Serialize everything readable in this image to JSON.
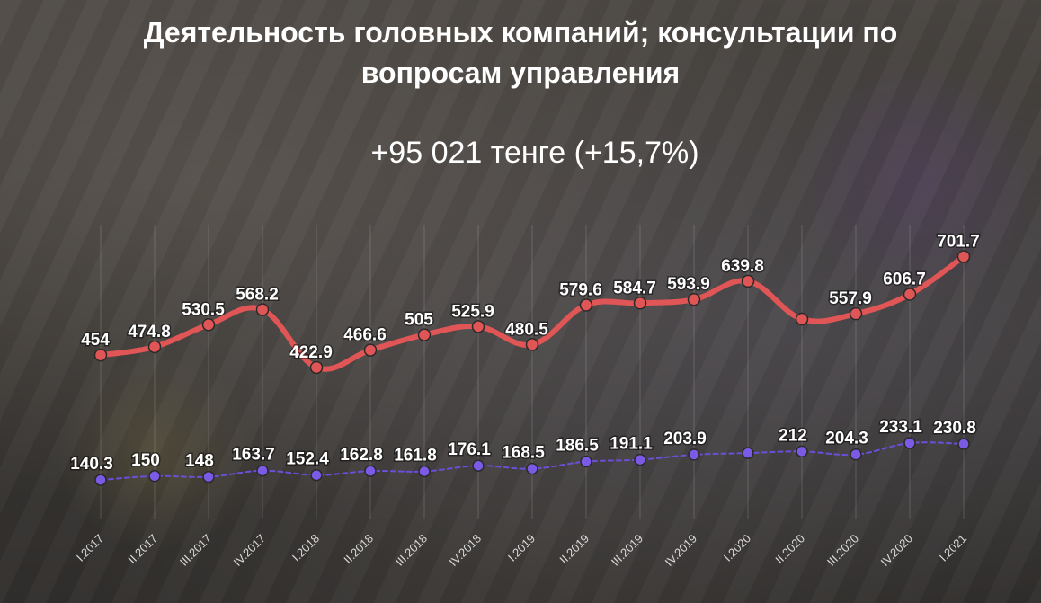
{
  "header": {
    "title_line1": "Деятельность головных компаний; консультации по",
    "title_line2": "вопросам управления",
    "subtitle": "+95 021 тенге (+15,7%)"
  },
  "chart_data": {
    "type": "line",
    "title": "Деятельность головных компаний; консультации по вопросам управления",
    "subtitle": "+95 021 тенге (+15,7%)",
    "xlabel": "",
    "ylabel": "",
    "ylim": [
      0,
      750
    ],
    "grid": true,
    "legend": "none",
    "categories": [
      "I.2017",
      "II.2017",
      "III.2017",
      "IV.2017",
      "I.2018",
      "II.2018",
      "III.2018",
      "IV.2018",
      "I.2019",
      "II.2019",
      "III.2019",
      "IV.2019",
      "I.2020",
      "II.2020",
      "III.2020",
      "IV.2020",
      "I.2021"
    ],
    "series": [
      {
        "color": "#e05555",
        "marker_color": "#e05555",
        "style": "solid",
        "values": [
          454,
          474.8,
          530.5,
          568.2,
          422.9,
          466.6,
          505,
          525.9,
          480.5,
          579.6,
          584.7,
          593.9,
          639.8,
          null,
          557.9,
          606.7,
          701.7
        ]
      },
      {
        "color": "#6a4fd8",
        "marker_color": "#7b5be6",
        "style": "dashed",
        "values": [
          140.3,
          150,
          148,
          163.7,
          152.4,
          162.8,
          161.8,
          176.1,
          168.5,
          186.5,
          191.1,
          203.9,
          null,
          212,
          204.3,
          233.1,
          230.8
        ]
      }
    ]
  }
}
